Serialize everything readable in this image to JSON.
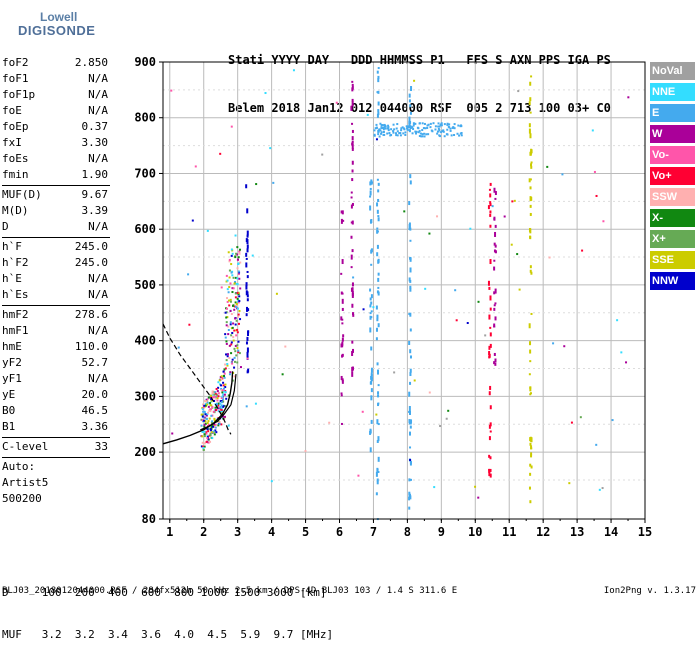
{
  "logo": {
    "top": "Lowell",
    "bottom": "DIGISONDE"
  },
  "header": {
    "line1": "Stati YYYY DAY   DDD HHMMSS P1   FFS S AXN PPS IGA PS",
    "line2": "Belem 2018 Jan12 012 044000 RSF  005 2 713 100 03+ C0"
  },
  "params": [
    {
      "label": "foF2",
      "value": "2.850"
    },
    {
      "label": "foF1",
      "value": "N/A"
    },
    {
      "label": "foF1p",
      "value": "N/A"
    },
    {
      "label": "foE",
      "value": "N/A"
    },
    {
      "label": "foEp",
      "value": "0.37"
    },
    {
      "label": "fxI",
      "value": "3.30"
    },
    {
      "label": "foEs",
      "value": "N/A"
    },
    {
      "label": "fmin",
      "value": "1.90"
    },
    {
      "label": "MUF(D)",
      "value": "9.67"
    },
    {
      "label": "M(D)",
      "value": "3.39"
    },
    {
      "label": "D",
      "value": "N/A"
    },
    {
      "label": "h`F",
      "value": "245.0"
    },
    {
      "label": "h`F2",
      "value": "245.0"
    },
    {
      "label": "h`E",
      "value": "N/A"
    },
    {
      "label": "h`Es",
      "value": "N/A"
    },
    {
      "label": "hmF2",
      "value": "278.6"
    },
    {
      "label": "hmF1",
      "value": "N/A"
    },
    {
      "label": "hmE",
      "value": "110.0"
    },
    {
      "label": "yF2",
      "value": "52.7"
    },
    {
      "label": "yF1",
      "value": "N/A"
    },
    {
      "label": "yE",
      "value": "20.0"
    },
    {
      "label": "B0",
      "value": "46.5"
    },
    {
      "label": "B1",
      "value": "3.36"
    },
    {
      "label": "C-level",
      "value": "33"
    },
    {
      "label": "Auto:",
      "value": ""
    },
    {
      "label": "Artist5",
      "value": ""
    },
    {
      "label": "500200",
      "value": ""
    }
  ],
  "legend": [
    {
      "label": "NoVal",
      "color": "#a0a0a0"
    },
    {
      "label": "NNE",
      "color": "#33ddff"
    },
    {
      "label": "E",
      "color": "#44aaee"
    },
    {
      "label": "W",
      "color": "#aa0099"
    },
    {
      "label": "Vo-",
      "color": "#ff55aa"
    },
    {
      "label": "Vo+",
      "color": "#ff0033"
    },
    {
      "label": "SSW",
      "color": "#ffb0b0"
    },
    {
      "label": "X-",
      "color": "#118811"
    },
    {
      "label": "X+",
      "color": "#66aa55"
    },
    {
      "label": "SSE",
      "color": "#cccc00"
    },
    {
      "label": "NNW",
      "color": "#0000cc"
    }
  ],
  "scale_table": {
    "d_row": "D     100  200  400  600  800 1000 1500 3000 [km]",
    "muf_row": "MUF   3.2  3.2  3.4  3.6  4.0  4.5  5.9  9.7 [MHz]"
  },
  "footer": "BLJ03_2018012044000.RSF / 284fx512h 50 kHz 2.5 km / DPS-4D BLJ03 103 / 1.4 S 311.6 E",
  "version": "Ion2Png v. 1.3.17",
  "chart_data": {
    "type": "scatter",
    "x_ticks": [
      1,
      2,
      3,
      4,
      5,
      6,
      7,
      8,
      9,
      10,
      11,
      12,
      13,
      14,
      15
    ],
    "y_ticks": [
      80,
      200,
      300,
      400,
      500,
      600,
      700,
      800,
      900
    ],
    "xlim": [
      0.8,
      15.0
    ],
    "ylim": [
      80,
      900
    ],
    "grid": true,
    "profile_curve": {
      "x": [
        0.8,
        1.2,
        1.6,
        2.0,
        2.3,
        2.55,
        2.7,
        2.78,
        2.83,
        2.85
      ],
      "y": [
        215,
        222,
        230,
        240,
        252,
        268,
        285,
        305,
        325,
        345
      ]
    },
    "model_curve_dashed": {
      "x": [
        0.8,
        1.0,
        1.3,
        1.6,
        1.9,
        2.2,
        2.45,
        2.62,
        2.72,
        2.8
      ],
      "y": [
        430,
        405,
        375,
        350,
        325,
        300,
        275,
        255,
        240,
        232
      ]
    },
    "trace_curve_upper": {
      "x": [
        1.9,
        2.1,
        2.4,
        2.6,
        2.8,
        2.9,
        2.95
      ],
      "y": [
        240,
        245,
        255,
        268,
        285,
        310,
        340
      ]
    },
    "vertical_echo_columns": [
      {
        "x": 3.25,
        "ymin": 300,
        "ymax": 720,
        "color": "#0000cc"
      },
      {
        "x": 6.35,
        "ymin": 330,
        "ymax": 870,
        "color": "#aa0099"
      },
      {
        "x": 6.05,
        "ymin": 250,
        "ymax": 650,
        "color": "#aa0099"
      },
      {
        "x": 7.1,
        "ymin": 80,
        "ymax": 900,
        "color": "#44aaee"
      },
      {
        "x": 8.05,
        "ymin": 100,
        "ymax": 860,
        "color": "#44aaee"
      },
      {
        "x": 10.4,
        "ymin": 150,
        "ymax": 700,
        "color": "#ff0033"
      },
      {
        "x": 10.55,
        "ymin": 320,
        "ymax": 680,
        "color": "#aa0099"
      },
      {
        "x": 11.6,
        "ymin": 90,
        "ymax": 880,
        "color": "#cccc00"
      },
      {
        "x": 6.9,
        "ymin": 200,
        "ymax": 700,
        "color": "#44aaee"
      }
    ],
    "horizontal_echo_band": {
      "xmin": 7.0,
      "xmax": 9.6,
      "y": 780,
      "color": "#44aaee"
    }
  }
}
